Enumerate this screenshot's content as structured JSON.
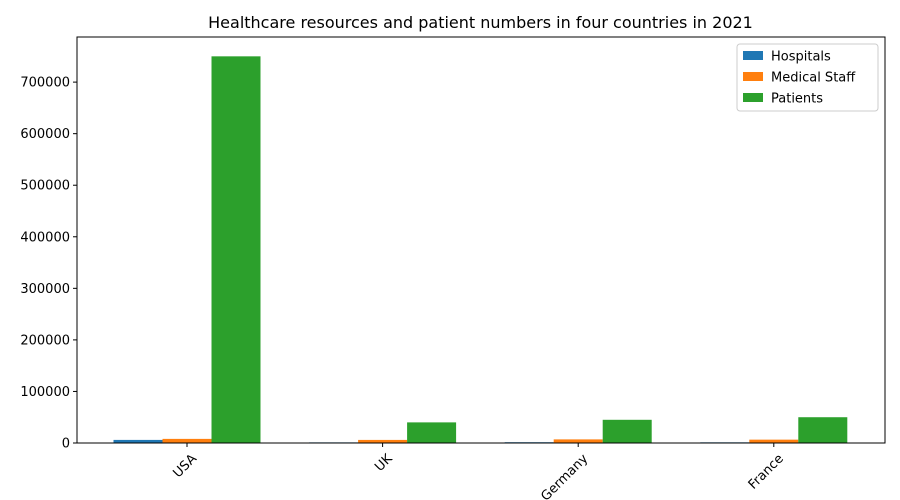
{
  "chart_data": {
    "type": "bar",
    "title": "Healthcare resources and patient numbers in four countries in 2021",
    "xlabel": "",
    "ylabel": "",
    "categories": [
      "USA",
      "UK",
      "Germany",
      "France"
    ],
    "series": [
      {
        "name": "Hospitals",
        "color": "#1f77b4",
        "values": [
          6000,
          1200,
          1500,
          1300
        ]
      },
      {
        "name": "Medical Staff",
        "color": "#ff7f0e",
        "values": [
          8000,
          6000,
          7000,
          6500
        ]
      },
      {
        "name": "Patients",
        "color": "#2ca02c",
        "values": [
          750000,
          40000,
          45000,
          50000
        ]
      }
    ],
    "ylim": [
      0,
      787500
    ],
    "yticks": [
      0,
      100000,
      200000,
      300000,
      400000,
      500000,
      600000,
      700000
    ],
    "legend_position": "top-right",
    "grid": false,
    "xtick_rotation": 45
  }
}
